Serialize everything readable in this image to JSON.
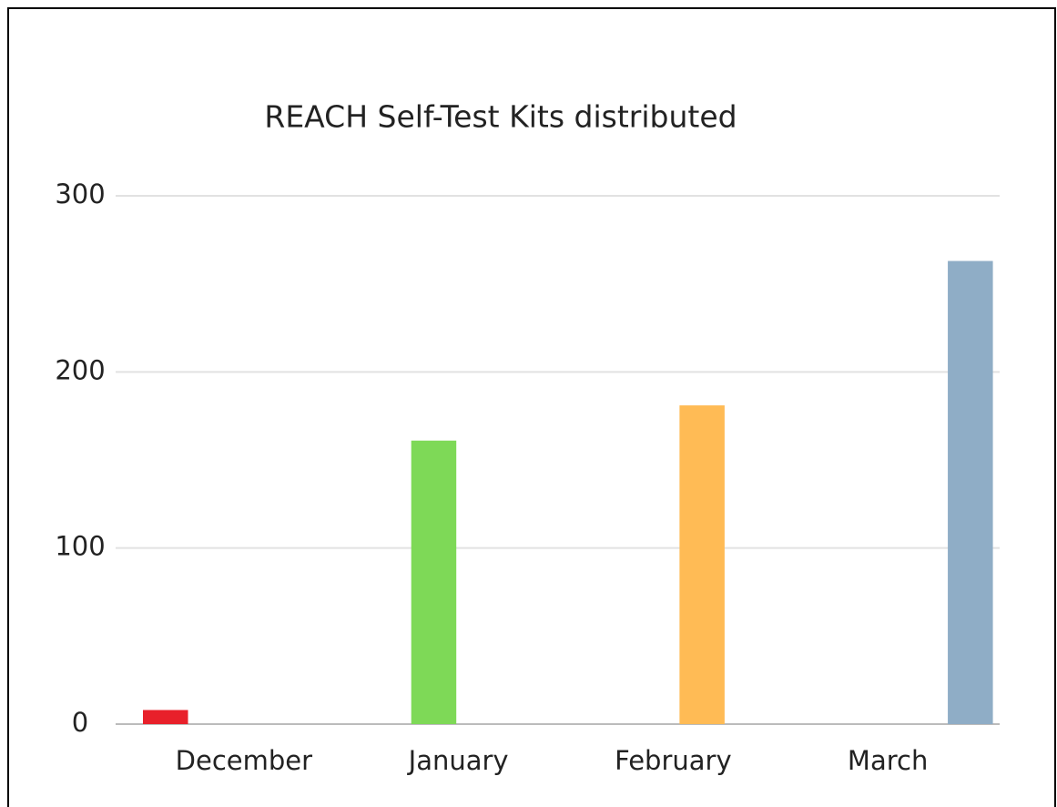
{
  "chart_data": {
    "type": "bar",
    "title": "REACH Self-Test Kits distributed",
    "categories": [
      "December",
      "January",
      "February",
      "March"
    ],
    "series": [
      {
        "color": "#e8202a",
        "values": [
          8,
          null,
          null,
          null
        ]
      },
      {
        "color": "#7ed957",
        "values": [
          null,
          161,
          null,
          null
        ]
      },
      {
        "color": "#ffbb55",
        "values": [
          null,
          null,
          181,
          null
        ]
      },
      {
        "color": "#8fadc6",
        "values": [
          null,
          null,
          null,
          263
        ]
      }
    ],
    "ylim": [
      0,
      300
    ],
    "yticks": [
      0,
      100,
      200,
      300
    ],
    "grid": true
  }
}
